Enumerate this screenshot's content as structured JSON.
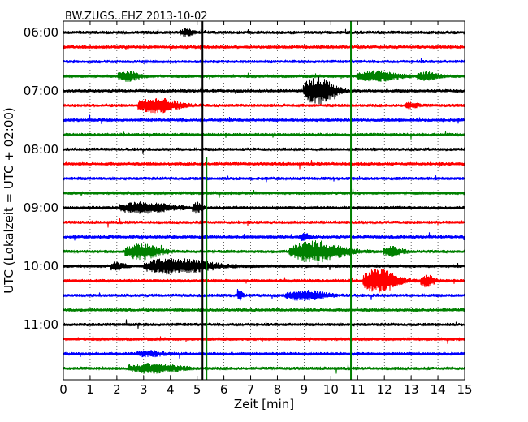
{
  "chart_data": {
    "type": "line",
    "title": "BW.ZUGS..EHZ 2013-10-02",
    "xlabel": "Zeit  [min]",
    "ylabel": "UTC (Lokalzeit = UTC + 02:00)",
    "xlim": [
      0,
      15
    ],
    "x_ticks": [
      0,
      1,
      2,
      3,
      4,
      5,
      6,
      7,
      8,
      9,
      10,
      11,
      12,
      13,
      14,
      15
    ],
    "x_tick_labels": [
      "0",
      "1",
      "2",
      "3",
      "4",
      "5",
      "6",
      "7",
      "8",
      "9",
      "10",
      "11",
      "12",
      "13",
      "14",
      "15"
    ],
    "y_tick_labels": [
      "06:00",
      "07:00",
      "08:00",
      "09:00",
      "10:00",
      "11:00"
    ],
    "trace_interval_minutes": 15,
    "start_time": "06:00",
    "trace_colors": [
      "#000000",
      "#ff0000",
      "#0000ff",
      "#008000"
    ],
    "grid": true,
    "traces": [
      {
        "start": "06:00",
        "color": "#000000",
        "events": [
          {
            "t": 4.6,
            "amp": 0.35,
            "dur": 0.4
          }
        ]
      },
      {
        "start": "06:15",
        "color": "#ff0000",
        "events": []
      },
      {
        "start": "06:30",
        "color": "#0000ff",
        "events": []
      },
      {
        "start": "06:45",
        "color": "#008000",
        "events": [
          {
            "t": 2.4,
            "amp": 0.55,
            "dur": 0.6
          },
          {
            "t": 11.7,
            "amp": 0.55,
            "dur": 1.2
          },
          {
            "t": 13.6,
            "amp": 0.45,
            "dur": 0.6
          }
        ]
      },
      {
        "start": "07:00",
        "color": "#000000",
        "events": [
          {
            "t": 9.5,
            "amp": 1.6,
            "dur": 0.9
          }
        ]
      },
      {
        "start": "07:15",
        "color": "#ff0000",
        "events": [
          {
            "t": 3.5,
            "amp": 0.8,
            "dur": 1.2
          },
          {
            "t": 13.0,
            "amp": 0.3,
            "dur": 0.4
          }
        ]
      },
      {
        "start": "07:30",
        "color": "#0000ff",
        "events": []
      },
      {
        "start": "07:45",
        "color": "#008000",
        "events": []
      },
      {
        "start": "08:00",
        "color": "#000000",
        "events": []
      },
      {
        "start": "08:15",
        "color": "#ff0000",
        "events": []
      },
      {
        "start": "08:30",
        "color": "#0000ff",
        "events": []
      },
      {
        "start": "08:45",
        "color": "#008000",
        "events": []
      },
      {
        "start": "09:00",
        "color": "#000000",
        "events": [
          {
            "t": 3.0,
            "amp": 0.6,
            "dur": 1.5
          },
          {
            "t": 5.0,
            "amp": 0.55,
            "dur": 0.3
          }
        ]
      },
      {
        "start": "09:15",
        "color": "#ff0000",
        "events": []
      },
      {
        "start": "09:30",
        "color": "#0000ff",
        "events": [
          {
            "t": 9.0,
            "amp": 0.4,
            "dur": 0.3
          }
        ]
      },
      {
        "start": "09:45",
        "color": "#008000",
        "events": [
          {
            "t": 2.9,
            "amp": 0.9,
            "dur": 1.0
          },
          {
            "t": 9.4,
            "amp": 1.2,
            "dur": 1.6
          },
          {
            "t": 12.3,
            "amp": 0.5,
            "dur": 0.6
          }
        ]
      },
      {
        "start": "10:00",
        "color": "#000000",
        "events": [
          {
            "t": 2.0,
            "amp": 0.5,
            "dur": 0.4
          },
          {
            "t": 4.2,
            "amp": 0.9,
            "dur": 2.0
          }
        ]
      },
      {
        "start": "10:15",
        "color": "#ff0000",
        "events": [
          {
            "t": 11.8,
            "amp": 1.4,
            "dur": 1.0
          },
          {
            "t": 13.6,
            "amp": 0.7,
            "dur": 0.4
          }
        ]
      },
      {
        "start": "10:30",
        "color": "#0000ff",
        "events": [
          {
            "t": 6.6,
            "amp": 0.6,
            "dur": 0.15
          },
          {
            "t": 9.0,
            "amp": 0.55,
            "dur": 1.2
          }
        ]
      },
      {
        "start": "10:45",
        "color": "#008000",
        "events": []
      },
      {
        "start": "11:00",
        "color": "#000000",
        "events": []
      },
      {
        "start": "11:15",
        "color": "#ff0000",
        "events": []
      },
      {
        "start": "11:30",
        "color": "#0000ff",
        "events": [
          {
            "t": 3.2,
            "amp": 0.3,
            "dur": 0.8
          }
        ]
      },
      {
        "start": "11:45",
        "color": "#008000",
        "events": [
          {
            "t": 3.3,
            "amp": 0.5,
            "dur": 1.5
          }
        ]
      }
    ],
    "vertical_markers": [
      {
        "x": 5.2,
        "color": "#000000",
        "from_trace": 0,
        "to_trace": 23
      },
      {
        "x": 5.35,
        "color": "#008000",
        "from_trace": 9,
        "to_trace": 23
      },
      {
        "x": 10.75,
        "color": "#008000",
        "from_trace": 0,
        "to_trace": 23
      }
    ]
  }
}
